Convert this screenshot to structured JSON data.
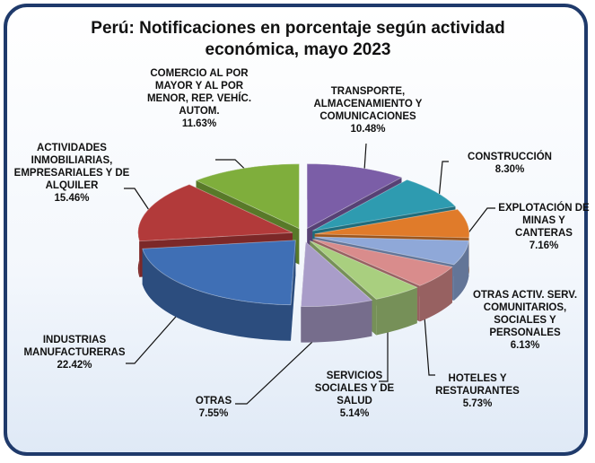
{
  "chart_data": {
    "type": "pie",
    "title": "Perú: Notificaciones en porcentaje según actividad económica, mayo 2023",
    "categories": [
      "TRANSPORTE, ALMACENAMIENTO Y COMUNICACIONES",
      "CONSTRUCCIÓN",
      "EXPLOTACIÓN DE MINAS Y CANTERAS",
      "OTRAS ACTIV. SERV. COMUNITARIOS, SOCIALES Y PERSONALES",
      "HOTELES Y RESTAURANTES",
      "SERVICIOS SOCIALES Y DE SALUD",
      "OTRAS",
      "INDUSTRIAS MANUFACTURERAS",
      "ACTIVIDADES INMOBILIARIAS, EMPRESARIALES Y DE ALQUILER",
      "COMERCIO AL POR MAYOR Y AL POR MENOR, REP. VEHÍC. AUTOM."
    ],
    "values": [
      10.48,
      8.3,
      7.16,
      6.13,
      5.73,
      5.14,
      7.55,
      22.42,
      15.46,
      11.63
    ],
    "value_labels": [
      "10.48%",
      "8.30%",
      "7.16%",
      "6.13%",
      "5.73%",
      "5.14%",
      "7.55%",
      "22.42%",
      "15.46%",
      "11.63%"
    ],
    "colors": [
      "#7b5ea7",
      "#2e9bb0",
      "#e07b2a",
      "#8fa8d8",
      "#d98c8c",
      "#a9cf7f",
      "#a99dc9",
      "#3f6fb5",
      "#b23a3a",
      "#7fae3c"
    ]
  }
}
